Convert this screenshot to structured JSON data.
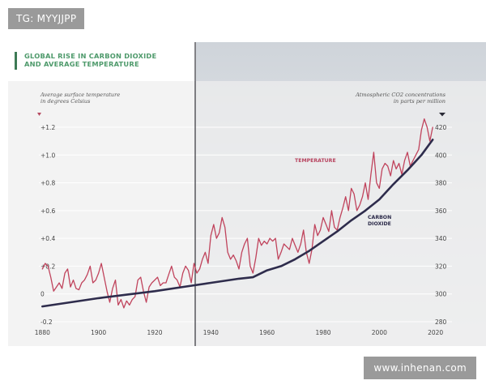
{
  "watermark_top": "TG: MYYJJPP",
  "watermark_bottom": "www.inhenan.com",
  "colors": {
    "temperature": "#c0435c",
    "co2": "#2e2c4c",
    "title": "#4e9a6b",
    "title_bar": "#3d7a55",
    "sky_background": "#d9dde2"
  },
  "chart_data": {
    "type": "line",
    "title": [
      "GLOBAL RISE IN CARBON DIOXIDE",
      "AND AVERAGE TEMPERATURE"
    ],
    "y_left_label": [
      "Average surface temperature",
      "in degrees Celsius"
    ],
    "y_right_label": [
      "Atmospheric CO2 concentrations",
      "in parts per million"
    ],
    "x_ticks": [
      "1880",
      "1900",
      "1920",
      "1940",
      "1960",
      "1980",
      "2000",
      "2020"
    ],
    "xlim": [
      1875,
      2025
    ],
    "y_left_ticks": [
      "+1.2",
      "+1.0",
      "+0.8",
      "+0.6",
      "+0.4",
      "+0.2",
      "0",
      "-0.2"
    ],
    "y_left_range": [
      -0.2,
      1.2
    ],
    "y_right_ticks": [
      "420",
      "400",
      "380",
      "360",
      "340",
      "320",
      "300",
      "280"
    ],
    "y_right_range": [
      280,
      420
    ],
    "annotations": {
      "temperature": "TEMPERATURE",
      "co2": [
        "CARBON",
        "DIOXIDE"
      ]
    },
    "series": [
      {
        "name": "Temperature",
        "axis": "left",
        "x": [
          1880,
          1881,
          1882,
          1883,
          1884,
          1885,
          1886,
          1887,
          1888,
          1889,
          1890,
          1891,
          1892,
          1893,
          1894,
          1895,
          1896,
          1897,
          1898,
          1899,
          1900,
          1901,
          1902,
          1903,
          1904,
          1905,
          1906,
          1907,
          1908,
          1909,
          1910,
          1911,
          1912,
          1913,
          1914,
          1915,
          1916,
          1917,
          1918,
          1919,
          1920,
          1921,
          1922,
          1923,
          1924,
          1925,
          1926,
          1927,
          1928,
          1929,
          1930,
          1931,
          1932,
          1933,
          1934,
          1935,
          1936,
          1937,
          1938,
          1939,
          1940,
          1941,
          1942,
          1943,
          1944,
          1945,
          1946,
          1947,
          1948,
          1949,
          1950,
          1951,
          1952,
          1953,
          1954,
          1955,
          1956,
          1957,
          1958,
          1959,
          1960,
          1961,
          1962,
          1963,
          1964,
          1965,
          1966,
          1967,
          1968,
          1969,
          1970,
          1971,
          1972,
          1973,
          1974,
          1975,
          1976,
          1977,
          1978,
          1979,
          1980,
          1981,
          1982,
          1983,
          1984,
          1985,
          1986,
          1987,
          1988,
          1989,
          1990,
          1991,
          1992,
          1993,
          1994,
          1995,
          1996,
          1997,
          1998,
          1999,
          2000,
          2001,
          2002,
          2003,
          2004,
          2005,
          2006,
          2007,
          2008,
          2009,
          2010,
          2011,
          2012,
          2013,
          2014,
          2015,
          2016,
          2017,
          2018,
          2019
        ],
        "values": [
          0.18,
          0.22,
          0.2,
          0.12,
          0.02,
          0.05,
          0.08,
          0.04,
          0.15,
          0.18,
          0.05,
          0.1,
          0.04,
          0.03,
          0.08,
          0.1,
          0.14,
          0.2,
          0.08,
          0.1,
          0.15,
          0.22,
          0.12,
          0.02,
          -0.06,
          0.04,
          0.1,
          -0.08,
          -0.04,
          -0.1,
          -0.05,
          -0.08,
          -0.04,
          -0.02,
          0.1,
          0.12,
          0.02,
          -0.06,
          0.05,
          0.08,
          0.1,
          0.12,
          0.06,
          0.08,
          0.08,
          0.14,
          0.2,
          0.12,
          0.1,
          0.05,
          0.15,
          0.2,
          0.17,
          0.08,
          0.22,
          0.15,
          0.18,
          0.25,
          0.3,
          0.22,
          0.42,
          0.5,
          0.4,
          0.44,
          0.55,
          0.48,
          0.3,
          0.25,
          0.28,
          0.24,
          0.18,
          0.3,
          0.36,
          0.4,
          0.2,
          0.15,
          0.26,
          0.4,
          0.35,
          0.38,
          0.36,
          0.4,
          0.38,
          0.4,
          0.25,
          0.3,
          0.36,
          0.34,
          0.32,
          0.4,
          0.35,
          0.3,
          0.36,
          0.46,
          0.3,
          0.22,
          0.32,
          0.5,
          0.42,
          0.46,
          0.55,
          0.5,
          0.45,
          0.6,
          0.48,
          0.46,
          0.55,
          0.62,
          0.7,
          0.6,
          0.76,
          0.72,
          0.6,
          0.64,
          0.7,
          0.8,
          0.68,
          0.86,
          1.02,
          0.8,
          0.76,
          0.9,
          0.94,
          0.92,
          0.85,
          0.96,
          0.9,
          0.94,
          0.86,
          0.96,
          1.02,
          0.92,
          0.96,
          1.0,
          1.04,
          1.18,
          1.26,
          1.2,
          1.1,
          1.2
        ]
      },
      {
        "name": "Carbon dioxide",
        "axis": "right",
        "x": [
          1880,
          1900,
          1920,
          1930,
          1940,
          1950,
          1955,
          1960,
          1965,
          1970,
          1975,
          1980,
          1985,
          1990,
          1995,
          2000,
          2005,
          2010,
          2015,
          2019
        ],
        "values": [
          291,
          297,
          302,
          305,
          308,
          311,
          312,
          317,
          320,
          325,
          331,
          338,
          345,
          353,
          360,
          368,
          379,
          389,
          400,
          411
        ]
      }
    ]
  }
}
